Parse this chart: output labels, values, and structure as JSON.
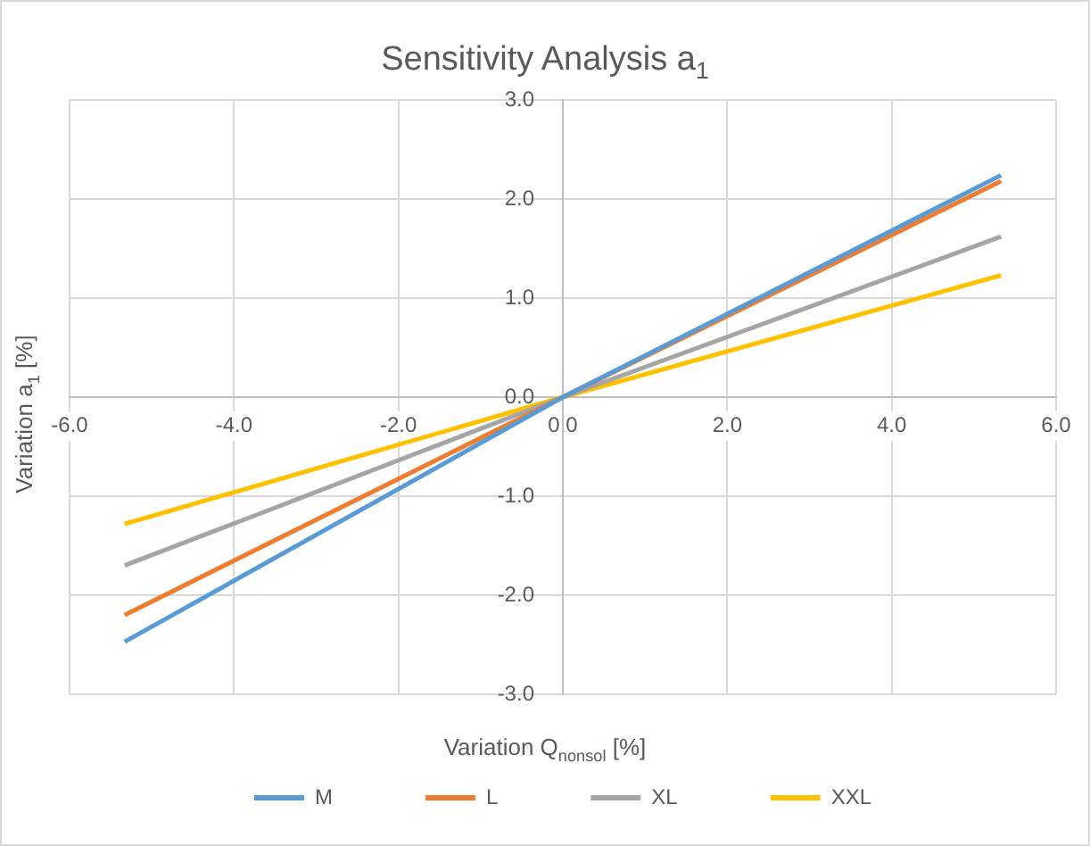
{
  "chart_data": {
    "type": "line",
    "title": "Sensitivity Analysis a$_{1}$",
    "xlabel": "Variation Q$_{nonsol}$ [%]",
    "ylabel": "Variation a$_{1}$ [%]",
    "x": [
      -5.33,
      0,
      5.33
    ],
    "series": [
      {
        "name": "M",
        "color": "#5b9bd5",
        "values": [
          -2.47,
          0,
          2.24
        ]
      },
      {
        "name": "L",
        "color": "#ed7d31",
        "values": [
          -2.2,
          0,
          2.18
        ]
      },
      {
        "name": "XL",
        "color": "#a5a5a5",
        "values": [
          -1.7,
          0,
          1.62
        ]
      },
      {
        "name": "XXL",
        "color": "#ffc000",
        "values": [
          -1.28,
          0,
          1.23
        ]
      }
    ],
    "xlim": [
      -6,
      6
    ],
    "xticks": [
      {
        "value": -6,
        "label": "-6.0"
      },
      {
        "value": -4,
        "label": "-4.0"
      },
      {
        "value": -2,
        "label": "-2.0"
      },
      {
        "value": 0,
        "label": "0.0"
      },
      {
        "value": 2,
        "label": "2.0"
      },
      {
        "value": 4,
        "label": "4.0"
      },
      {
        "value": 6,
        "label": "6.0"
      }
    ],
    "ylim": [
      -3,
      3
    ],
    "yticks": [
      {
        "value": -3,
        "label": "-3.0"
      },
      {
        "value": -2,
        "label": "-2.0"
      },
      {
        "value": -1,
        "label": "-1.0"
      },
      {
        "value": 0,
        "label": "0.0"
      },
      {
        "value": 1,
        "label": "1.0"
      },
      {
        "value": 2,
        "label": "2.0"
      },
      {
        "value": 3,
        "label": "3.0"
      }
    ],
    "grid": true,
    "legend": "bottom",
    "marker": "none",
    "line_style": "solid"
  }
}
